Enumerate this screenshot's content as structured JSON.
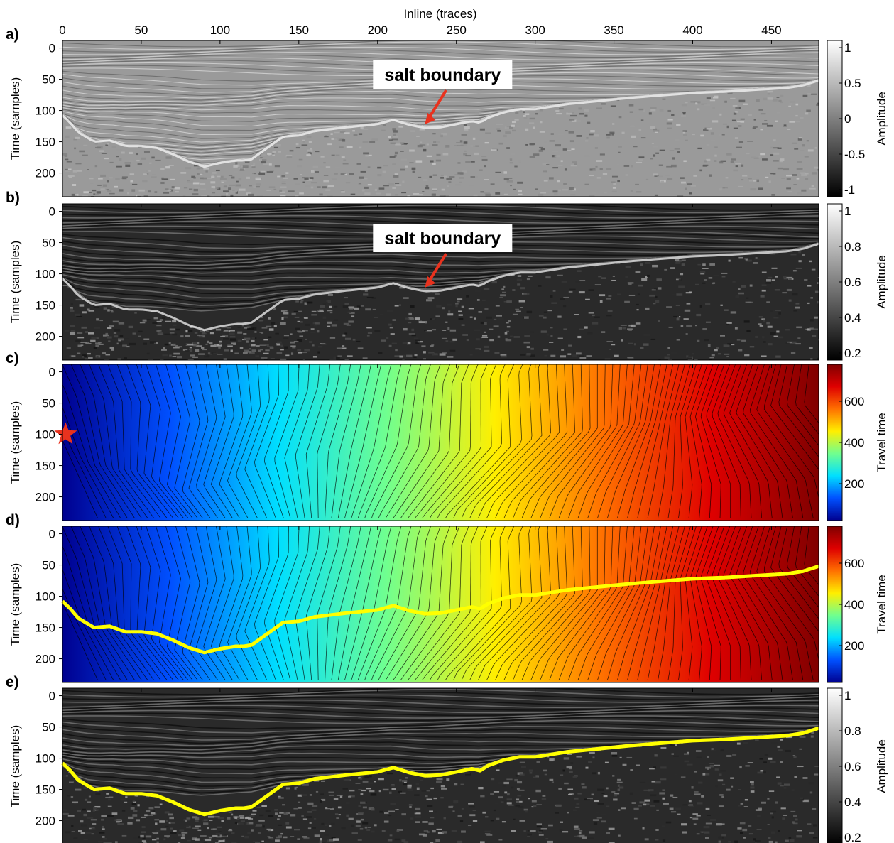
{
  "figure": {
    "x_axis_label": "Inline (traces)",
    "x_ticks": [
      0,
      50,
      100,
      150,
      200,
      250,
      300,
      350,
      400,
      450
    ],
    "y_axis_label": "Time (samples)",
    "y_ticks": [
      0,
      50,
      100,
      150,
      200
    ],
    "x_range": [
      0,
      480
    ],
    "y_range": [
      -12,
      238
    ]
  },
  "panels": [
    {
      "id": "a",
      "label": "a)",
      "kind": "seismic",
      "annotation": "salt boundary",
      "colorbar": {
        "label": "Amplitude",
        "ticks": [
          "1",
          "0.5",
          "0",
          "-0.5",
          "-1"
        ],
        "colors": [
          "#000000",
          "#ffffff"
        ]
      }
    },
    {
      "id": "b",
      "label": "b)",
      "kind": "attribute",
      "annotation": "salt boundary",
      "colorbar": {
        "label": "Amplitude",
        "ticks": [
          "1",
          "0.8",
          "0.6",
          "0.4",
          "0.2"
        ],
        "colors": [
          "#000000",
          "#ffffff"
        ]
      }
    },
    {
      "id": "c",
      "label": "c)",
      "kind": "traveltime",
      "source_marker": "star",
      "colorbar": {
        "label": "Travel time",
        "ticks": [
          "600",
          "400",
          "200"
        ],
        "colors": [
          "#00008f",
          "#0050ff",
          "#00dfff",
          "#70ff8f",
          "#ffef00",
          "#ff7000",
          "#df0000",
          "#800000"
        ]
      }
    },
    {
      "id": "d",
      "label": "d)",
      "kind": "traveltime",
      "picked_path": true,
      "colorbar": {
        "label": "Travel time",
        "ticks": [
          "600",
          "400",
          "200"
        ],
        "colors": [
          "#00008f",
          "#0050ff",
          "#00dfff",
          "#70ff8f",
          "#ffef00",
          "#ff7000",
          "#df0000",
          "#800000"
        ]
      }
    },
    {
      "id": "e",
      "label": "e)",
      "kind": "attribute",
      "picked_path": true,
      "colorbar": {
        "label": "Amplitude",
        "ticks": [
          "1",
          "0.8",
          "0.6",
          "0.4",
          "0.2"
        ],
        "colors": [
          "#000000",
          "#ffffff"
        ]
      }
    }
  ],
  "chart_data": {
    "type": "heatmap",
    "source_position": {
      "x": 2,
      "y": 100
    },
    "salt_boundary_path": {
      "x": [
        0,
        5,
        10,
        20,
        30,
        40,
        50,
        60,
        70,
        80,
        90,
        100,
        110,
        115,
        120,
        130,
        140,
        150,
        160,
        180,
        200,
        210,
        220,
        230,
        240,
        250,
        260,
        265,
        270,
        280,
        290,
        300,
        320,
        340,
        360,
        380,
        400,
        420,
        440,
        460,
        470,
        480
      ],
      "y": [
        108,
        120,
        135,
        150,
        148,
        157,
        157,
        160,
        170,
        182,
        190,
        184,
        180,
        180,
        178,
        160,
        142,
        140,
        133,
        127,
        122,
        115,
        123,
        128,
        127,
        122,
        117,
        120,
        112,
        103,
        98,
        98,
        90,
        85,
        80,
        76,
        72,
        70,
        67,
        64,
        60,
        52
      ]
    },
    "annotation_target": {
      "x": 230,
      "y": 122
    }
  },
  "colors": {
    "path": "#ffff00",
    "arrow": "#e8321e",
    "star": "#e8321e",
    "contour": "#000000"
  }
}
